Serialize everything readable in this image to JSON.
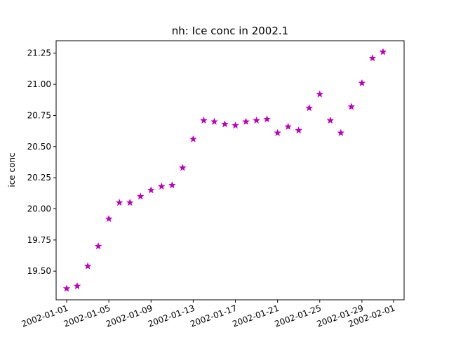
{
  "chart_data": {
    "type": "scatter",
    "title": "nh: Ice conc in 2002.1",
    "xlabel": "",
    "ylabel": "ice conc",
    "marker": "star",
    "color": "#bf00bf",
    "grid": false,
    "xlim": [
      "2001-12-31",
      "2002-02-02"
    ],
    "ylim": [
      19.27,
      21.35
    ],
    "x_ticks": [
      "2002-01-01",
      "2002-01-05",
      "2002-01-09",
      "2002-01-13",
      "2002-01-17",
      "2002-01-21",
      "2002-01-25",
      "2002-01-29",
      "2002-02-01"
    ],
    "y_ticks": [
      "19.50",
      "19.75",
      "20.00",
      "20.25",
      "20.50",
      "20.75",
      "21.00",
      "21.25"
    ],
    "x": [
      "2002-01-01",
      "2002-01-02",
      "2002-01-03",
      "2002-01-04",
      "2002-01-05",
      "2002-01-06",
      "2002-01-07",
      "2002-01-08",
      "2002-01-09",
      "2002-01-10",
      "2002-01-11",
      "2002-01-12",
      "2002-01-13",
      "2002-01-14",
      "2002-01-15",
      "2002-01-16",
      "2002-01-17",
      "2002-01-18",
      "2002-01-19",
      "2002-01-20",
      "2002-01-21",
      "2002-01-22",
      "2002-01-23",
      "2002-01-24",
      "2002-01-25",
      "2002-01-26",
      "2002-01-27",
      "2002-01-28",
      "2002-01-29",
      "2002-01-30",
      "2002-01-31"
    ],
    "y": [
      19.36,
      19.38,
      19.54,
      19.7,
      19.92,
      20.05,
      20.05,
      20.1,
      20.15,
      20.18,
      20.19,
      20.33,
      20.56,
      20.71,
      20.7,
      20.68,
      20.67,
      20.7,
      20.71,
      20.72,
      20.61,
      20.66,
      20.63,
      20.81,
      20.92,
      20.71,
      20.61,
      20.82,
      21.01,
      21.21,
      21.26
    ]
  }
}
